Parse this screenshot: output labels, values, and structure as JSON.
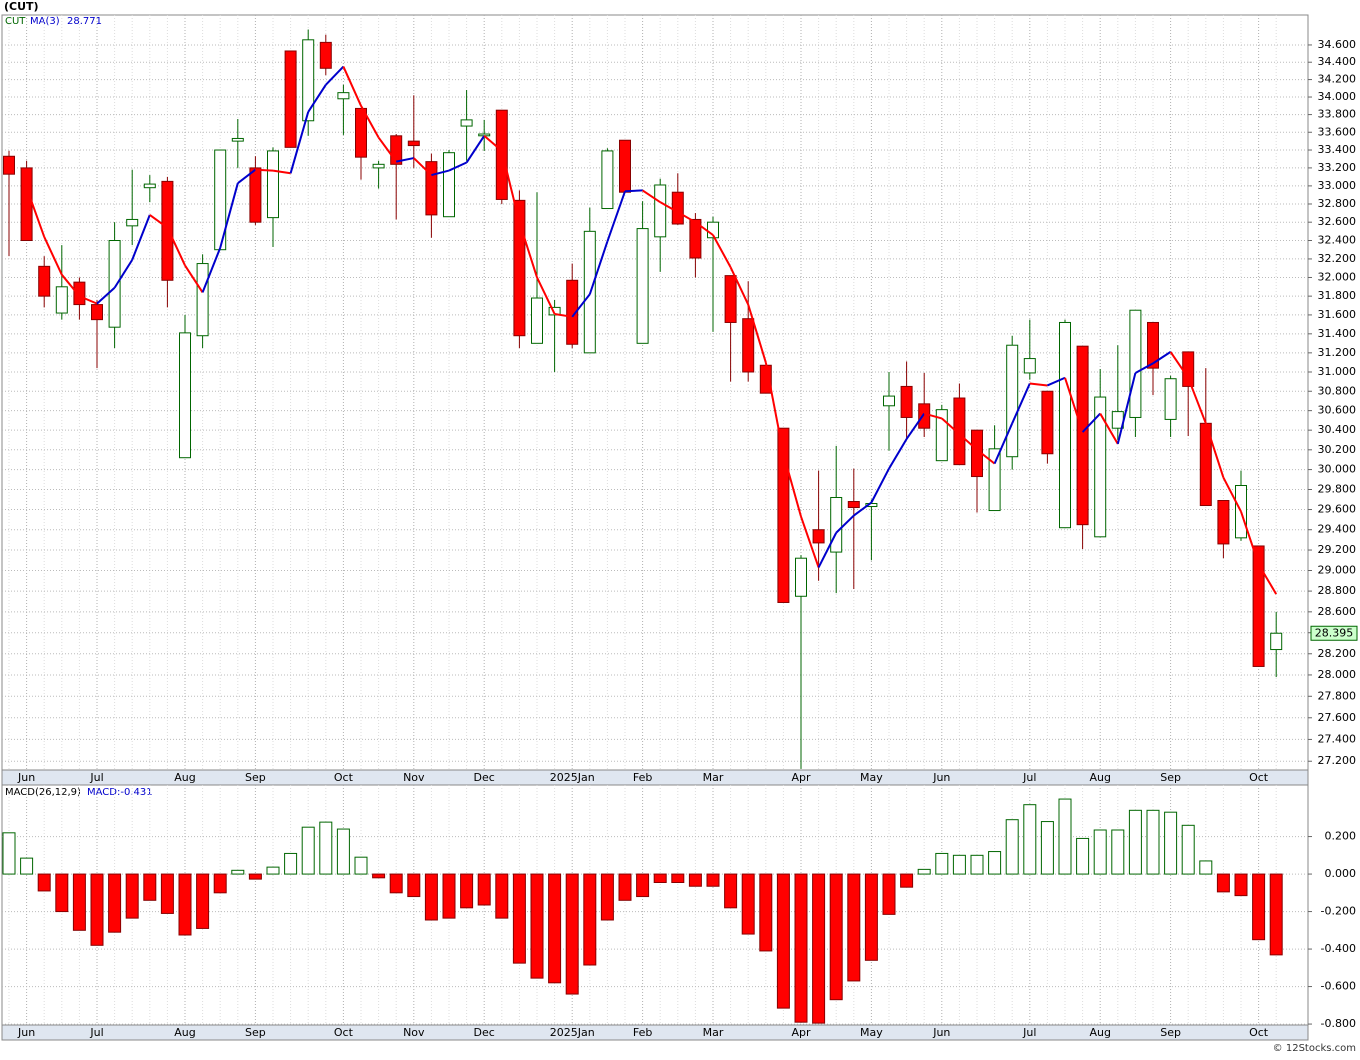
{
  "chart_data": [
    {
      "type": "candlestick",
      "title": "(CUT)",
      "log_scale": true,
      "grid": true,
      "categories": [
        null,
        "Jun",
        null,
        null,
        null,
        "Jul",
        null,
        null,
        null,
        null,
        "Aug",
        null,
        null,
        null,
        "Sep",
        null,
        null,
        null,
        null,
        "Oct",
        null,
        null,
        null,
        "Nov",
        null,
        null,
        null,
        "Dec",
        null,
        null,
        null,
        null,
        "2025Jan",
        null,
        null,
        null,
        "Feb",
        null,
        null,
        null,
        "Mar",
        null,
        null,
        null,
        null,
        "Apr",
        null,
        null,
        null,
        "May",
        null,
        null,
        null,
        "Jun",
        null,
        null,
        null,
        null,
        "Jul",
        null,
        null,
        null,
        "Aug",
        null,
        null,
        null,
        "Sep",
        null,
        null,
        null,
        null,
        "Oct",
        null
      ],
      "series": [
        {
          "name": "CUT",
          "up_color": "#006600",
          "down_color": "#ff0000",
          "open": [
            33.33,
            33.2,
            32.12,
            31.62,
            31.95,
            31.71,
            31.47,
            32.56,
            32.98,
            33.05,
            30.12,
            31.38,
            32.3,
            33.5,
            33.2,
            32.65,
            34.53,
            33.73,
            34.63,
            33.98,
            33.87,
            33.2,
            33.56,
            33.5,
            33.27,
            32.66,
            33.67,
            33.56,
            33.85,
            32.84,
            31.3,
            31.6,
            31.97,
            31.2,
            32.75,
            33.51,
            31.3,
            32.44,
            32.93,
            32.63,
            32.43,
            32.02,
            31.56,
            31.07,
            30.42,
            28.75,
            29.4,
            29.18,
            29.68,
            29.63,
            30.65,
            30.85,
            30.67,
            30.09,
            30.73,
            30.4,
            29.59,
            30.13,
            30.99,
            30.8,
            29.42,
            31.27,
            29.33,
            30.42,
            30.53,
            31.52,
            30.51,
            31.21,
            30.47,
            29.69,
            29.32,
            29.24,
            28.24
          ],
          "high": [
            33.39,
            33.28,
            32.23,
            32.35,
            32.0,
            31.76,
            32.6,
            33.18,
            33.12,
            33.1,
            31.6,
            32.25,
            33.4,
            33.75,
            33.33,
            33.43,
            34.53,
            34.78,
            34.72,
            34.14,
            33.87,
            33.28,
            33.58,
            34.02,
            33.36,
            33.4,
            34.08,
            33.74,
            33.85,
            32.95,
            32.93,
            31.76,
            32.15,
            32.76,
            33.42,
            33.51,
            32.83,
            33.08,
            33.14,
            32.7,
            32.66,
            32.02,
            31.96,
            31.07,
            30.42,
            29.15,
            29.99,
            30.24,
            30.01,
            29.7,
            31.0,
            31.11,
            30.99,
            30.66,
            30.88,
            30.4,
            30.45,
            31.38,
            31.55,
            30.8,
            31.55,
            31.27,
            31.03,
            31.28,
            31.65,
            31.52,
            30.96,
            31.21,
            31.04,
            29.69,
            29.99,
            29.24,
            28.6
          ],
          "low": [
            32.23,
            32.4,
            31.68,
            31.55,
            31.55,
            31.04,
            31.25,
            32.35,
            32.82,
            31.68,
            30.12,
            31.25,
            32.3,
            33.2,
            32.57,
            32.33,
            33.43,
            33.56,
            34.25,
            33.57,
            33.07,
            32.97,
            32.63,
            33.2,
            32.43,
            32.66,
            33.28,
            33.39,
            32.8,
            31.25,
            31.3,
            31.0,
            31.25,
            31.2,
            32.75,
            32.93,
            31.3,
            32.06,
            32.57,
            32.0,
            31.42,
            30.9,
            30.9,
            30.78,
            28.69,
            27.13,
            28.9,
            28.78,
            28.82,
            29.1,
            30.19,
            30.3,
            30.33,
            30.09,
            30.05,
            29.57,
            29.59,
            30.0,
            30.92,
            30.06,
            29.42,
            29.21,
            29.33,
            30.3,
            30.33,
            30.76,
            30.33,
            30.34,
            29.64,
            29.12,
            29.29,
            28.08,
            27.98
          ],
          "close": [
            33.13,
            32.4,
            31.8,
            31.9,
            31.71,
            31.55,
            32.4,
            32.63,
            33.02,
            31.97,
            31.41,
            32.15,
            33.4,
            33.53,
            32.6,
            33.39,
            33.43,
            34.66,
            34.33,
            34.05,
            33.32,
            33.24,
            33.24,
            33.45,
            32.68,
            33.37,
            33.74,
            33.58,
            32.85,
            31.38,
            31.78,
            31.68,
            31.29,
            32.5,
            33.39,
            32.93,
            32.53,
            33.01,
            32.58,
            32.21,
            32.6,
            31.52,
            31.0,
            30.78,
            28.69,
            29.12,
            29.27,
            29.72,
            29.62,
            29.66,
            30.75,
            30.53,
            30.42,
            30.61,
            30.05,
            29.93,
            30.21,
            31.28,
            31.14,
            30.16,
            31.52,
            29.45,
            30.74,
            30.59,
            31.65,
            31.04,
            30.93,
            30.85,
            29.64,
            29.26,
            29.84,
            28.08,
            28.395
          ]
        }
      ],
      "ma": {
        "name": "MA(3)",
        "up_color": "#0000cc",
        "down_color": "#ff0000",
        "values": [
          null,
          32.98,
          32.44,
          32.03,
          31.8,
          31.72,
          31.89,
          32.19,
          32.68,
          32.54,
          32.13,
          31.84,
          32.32,
          33.03,
          33.18,
          33.17,
          33.14,
          33.83,
          34.14,
          34.35,
          33.9,
          33.54,
          33.27,
          33.31,
          33.12,
          33.17,
          33.26,
          33.56,
          33.39,
          32.6,
          32.0,
          31.61,
          31.58,
          31.82,
          32.39,
          32.94,
          32.95,
          32.82,
          32.71,
          32.6,
          32.46,
          32.11,
          31.71,
          31.1,
          30.16,
          29.53,
          29.03,
          29.37,
          29.54,
          29.67,
          30.01,
          30.31,
          30.57,
          30.52,
          30.36,
          30.2,
          30.06,
          30.47,
          30.88,
          30.86,
          30.94,
          30.38,
          30.57,
          30.26,
          30.99,
          31.09,
          31.21,
          30.94,
          30.47,
          29.92,
          29.58,
          29.06,
          28.771
        ]
      },
      "ylim": [
        27.12,
        34.95
      ],
      "yticks": [
        {
          "value": 34.6,
          "label": "34.600"
        },
        {
          "value": 34.4,
          "label": "34.400"
        },
        {
          "value": 34.2,
          "label": "34.200"
        },
        {
          "value": 34.0,
          "label": "34.000"
        },
        {
          "value": 33.8,
          "label": "33.800"
        },
        {
          "value": 33.6,
          "label": "33.600"
        },
        {
          "value": 33.4,
          "label": "33.400"
        },
        {
          "value": 33.2,
          "label": "33.200"
        },
        {
          "value": 33.0,
          "label": "33.000"
        },
        {
          "value": 32.8,
          "label": "32.800"
        },
        {
          "value": 32.6,
          "label": "32.600"
        },
        {
          "value": 32.4,
          "label": "32.400"
        },
        {
          "value": 32.2,
          "label": "32.200"
        },
        {
          "value": 32.0,
          "label": "32.000"
        },
        {
          "value": 31.8,
          "label": "31.800"
        },
        {
          "value": 31.6,
          "label": "31.600"
        },
        {
          "value": 31.4,
          "label": "31.400"
        },
        {
          "value": 31.2,
          "label": "31.200"
        },
        {
          "value": 31.0,
          "label": "31.000"
        },
        {
          "value": 30.8,
          "label": "30.800"
        },
        {
          "value": 30.6,
          "label": "30.600"
        },
        {
          "value": 30.4,
          "label": "30.400"
        },
        {
          "value": 30.2,
          "label": "30.200"
        },
        {
          "value": 30.0,
          "label": "30.000"
        },
        {
          "value": 29.8,
          "label": "29.800"
        },
        {
          "value": 29.6,
          "label": "29.600"
        },
        {
          "value": 29.4,
          "label": "29.400"
        },
        {
          "value": 29.2,
          "label": "29.200"
        },
        {
          "value": 29.0,
          "label": "29.000"
        },
        {
          "value": 28.8,
          "label": "28.800"
        },
        {
          "value": 28.6,
          "label": "28.600"
        },
        {
          "value": 28.4,
          "label": "28.400"
        },
        {
          "value": 28.2,
          "label": "28.200"
        },
        {
          "value": 28.0,
          "label": "28.000"
        },
        {
          "value": 27.8,
          "label": "27.800"
        },
        {
          "value": 27.6,
          "label": "27.600"
        },
        {
          "value": 27.4,
          "label": "27.400"
        },
        {
          "value": 27.2,
          "label": "27.200"
        }
      ]
    },
    {
      "type": "histogram",
      "title": "MACD(26,12,9)",
      "latest_label": "MACD:-0.431",
      "grid": true,
      "series": [
        {
          "name": "MACD",
          "up_color": "#006600",
          "down_color": "#ff0000",
          "values": [
            0.22,
            0.085,
            -0.09,
            -0.2,
            -0.3,
            -0.38,
            -0.31,
            -0.235,
            -0.14,
            -0.21,
            -0.325,
            -0.29,
            -0.1,
            0.02,
            -0.027,
            0.037,
            0.11,
            0.25,
            0.277,
            0.24,
            0.09,
            -0.02,
            -0.1,
            -0.12,
            -0.245,
            -0.235,
            -0.18,
            -0.165,
            -0.235,
            -0.475,
            -0.555,
            -0.58,
            -0.64,
            -0.485,
            -0.245,
            -0.14,
            -0.12,
            -0.045,
            -0.045,
            -0.065,
            -0.065,
            -0.18,
            -0.32,
            -0.41,
            -0.715,
            -0.79,
            -0.795,
            -0.67,
            -0.57,
            -0.46,
            -0.215,
            -0.07,
            0.025,
            0.11,
            0.1,
            0.1,
            0.12,
            0.29,
            0.37,
            0.28,
            0.4,
            0.19,
            0.235,
            0.235,
            0.34,
            0.34,
            0.33,
            0.26,
            0.07,
            -0.095,
            -0.115,
            -0.35,
            -0.431
          ]
        }
      ],
      "ylim": [
        -0.805,
        0.475
      ],
      "yticks": [
        {
          "value": 0.2,
          "label": "0.200"
        },
        {
          "value": 0,
          "label": "0.000"
        },
        {
          "value": -0.2,
          "label": "-0.200"
        },
        {
          "value": -0.4,
          "label": "-0.400"
        },
        {
          "value": -0.6,
          "label": "-0.600"
        },
        {
          "value": -0.8,
          "label": "-0.800"
        }
      ]
    }
  ],
  "footer": "© 12Stocks.com"
}
